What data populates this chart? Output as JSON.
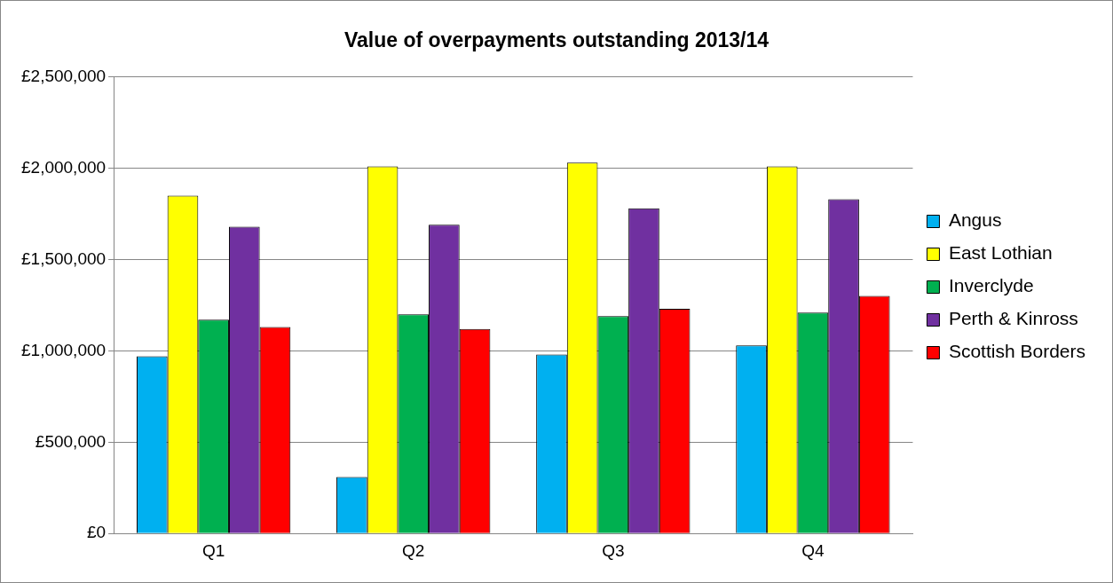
{
  "chart_data": {
    "type": "bar",
    "title": "Value of overpayments outstanding 2013/14",
    "categories": [
      "Q1",
      "Q2",
      "Q3",
      "Q4"
    ],
    "series": [
      {
        "name": "Angus",
        "color": "#00b0f0",
        "values": [
          970000,
          310000,
          980000,
          1030000
        ]
      },
      {
        "name": "East Lothian",
        "color": "#ffff00",
        "values": [
          1850000,
          2010000,
          2030000,
          2010000
        ]
      },
      {
        "name": "Inverclyde",
        "color": "#00b050",
        "values": [
          1170000,
          1200000,
          1190000,
          1210000
        ]
      },
      {
        "name": "Perth & Kinross",
        "color": "#7030a0",
        "values": [
          1680000,
          1690000,
          1780000,
          1830000
        ]
      },
      {
        "name": "Scottish Borders",
        "color": "#ff0000",
        "values": [
          1130000,
          1120000,
          1230000,
          1300000
        ]
      }
    ],
    "ylim": [
      0,
      2500000
    ],
    "yticks": [
      {
        "value": 0,
        "label": "£0"
      },
      {
        "value": 500000,
        "label": "£500,000"
      },
      {
        "value": 1000000,
        "label": "£1,000,000"
      },
      {
        "value": 1500000,
        "label": "£1,500,000"
      },
      {
        "value": 2000000,
        "label": "£2,000,000"
      },
      {
        "value": 2500000,
        "label": "£2,500,000"
      }
    ],
    "grid": "y",
    "legend": "right"
  }
}
